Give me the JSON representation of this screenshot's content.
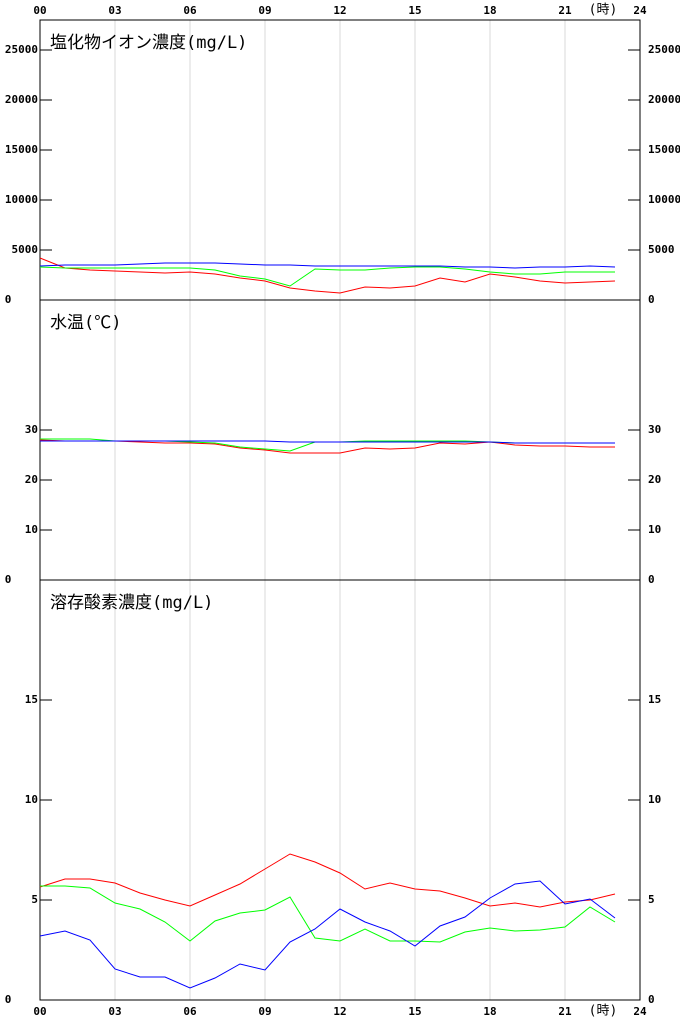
{
  "chart_data": [
    {
      "type": "line",
      "title": "塩化物イオン濃度(mg/L)",
      "xlabel": "(時)",
      "x": [
        0,
        1,
        2,
        3,
        4,
        5,
        6,
        7,
        8,
        9,
        10,
        11,
        12,
        13,
        14,
        15,
        16,
        17,
        18,
        19,
        20,
        21,
        22,
        23
      ],
      "xlim": [
        0,
        24
      ],
      "xticks": [
        {
          "value": 0,
          "label": "00"
        },
        {
          "value": 3,
          "label": "03"
        },
        {
          "value": 6,
          "label": "06"
        },
        {
          "value": 9,
          "label": "09"
        },
        12,
        15,
        18,
        21,
        24
      ],
      "ylim": [
        0,
        28000
      ],
      "yticks": [
        0,
        5000,
        10000,
        15000,
        20000,
        25000
      ],
      "grid": true,
      "series": [
        {
          "color": "#ff0000",
          "values": [
            4200,
            3200,
            3000,
            2900,
            2800,
            2700,
            2800,
            2600,
            2200,
            1900,
            1200,
            900,
            700,
            1300,
            1200,
            1400,
            2200,
            1800,
            2600,
            2300,
            1900,
            1700,
            1800,
            1900
          ]
        },
        {
          "color": "#00ff00",
          "values": [
            3300,
            3200,
            3200,
            3200,
            3200,
            3200,
            3200,
            3000,
            2400,
            2100,
            1400,
            3100,
            3000,
            3000,
            3200,
            3300,
            3300,
            3100,
            2800,
            2600,
            2600,
            2800,
            2800,
            2800
          ]
        },
        {
          "color": "#0000ff",
          "values": [
            3400,
            3500,
            3500,
            3500,
            3600,
            3700,
            3700,
            3700,
            3600,
            3500,
            3500,
            3400,
            3400,
            3400,
            3400,
            3400,
            3400,
            3300,
            3300,
            3200,
            3300,
            3300,
            3400,
            3300
          ]
        }
      ]
    },
    {
      "type": "line",
      "title": "水温(℃)",
      "x": [
        0,
        1,
        2,
        3,
        4,
        5,
        6,
        7,
        8,
        9,
        10,
        11,
        12,
        13,
        14,
        15,
        16,
        17,
        18,
        19,
        20,
        21,
        22,
        23
      ],
      "xlim": [
        0,
        24
      ],
      "xticks": [
        {
          "value": 0,
          "label": "00"
        },
        {
          "value": 3,
          "label": "03"
        },
        {
          "value": 6,
          "label": "06"
        },
        {
          "value": 9,
          "label": "09"
        },
        12,
        15,
        18,
        21,
        24
      ],
      "ylim": [
        0,
        56
      ],
      "yticks": [
        0,
        10,
        20,
        30
      ],
      "grid": true,
      "series": [
        {
          "color": "#ff0000",
          "values": [
            28,
            27.8,
            27.8,
            27.8,
            27.6,
            27.4,
            27.4,
            27.2,
            26.4,
            26,
            25.4,
            25.4,
            25.4,
            26.4,
            26.2,
            26.4,
            27.4,
            27.2,
            27.6,
            27,
            26.8,
            26.8,
            26.6,
            26.6
          ]
        },
        {
          "color": "#00ff00",
          "values": [
            28.2,
            28.2,
            28.2,
            27.8,
            27.8,
            27.8,
            27.6,
            27.4,
            26.6,
            26.2,
            25.8,
            27.6,
            27.6,
            27.8,
            27.8,
            27.8,
            27.8,
            27.8,
            27.6,
            27.4,
            27.4,
            27.4,
            27.4,
            27.4
          ]
        },
        {
          "color": "#0000ff",
          "values": [
            27.8,
            27.8,
            27.8,
            27.8,
            27.8,
            27.8,
            27.8,
            27.8,
            27.8,
            27.8,
            27.6,
            27.6,
            27.6,
            27.6,
            27.6,
            27.6,
            27.6,
            27.6,
            27.6,
            27.4,
            27.4,
            27.4,
            27.4,
            27.4
          ]
        }
      ]
    },
    {
      "type": "line",
      "title": "溶存酸素濃度(mg/L)",
      "xlabel": "(時)",
      "x": [
        0,
        1,
        2,
        3,
        4,
        5,
        6,
        7,
        8,
        9,
        10,
        11,
        12,
        13,
        14,
        15,
        16,
        17,
        18,
        19,
        20,
        21,
        22,
        23
      ],
      "xlim": [
        0,
        24
      ],
      "xticks": [
        {
          "value": 0,
          "label": "00"
        },
        {
          "value": 3,
          "label": "03"
        },
        {
          "value": 6,
          "label": "06"
        },
        {
          "value": 9,
          "label": "09"
        },
        12,
        15,
        18,
        21,
        24
      ],
      "ylim": [
        0,
        21
      ],
      "yticks": [
        0,
        5,
        10,
        15
      ],
      "grid": true,
      "series": [
        {
          "color": "#ff0000",
          "values": [
            5.65,
            6.05,
            6.05,
            5.85,
            5.35,
            5,
            4.7,
            5.25,
            5.8,
            6.55,
            7.3,
            6.9,
            6.35,
            5.55,
            5.85,
            5.55,
            5.45,
            5.1,
            4.7,
            4.85,
            4.65,
            4.9,
            5,
            5.3
          ]
        },
        {
          "color": "#00ff00",
          "values": [
            5.7,
            5.7,
            5.6,
            4.85,
            4.55,
            3.9,
            2.95,
            3.95,
            4.35,
            4.5,
            5.15,
            3.1,
            2.95,
            3.55,
            2.95,
            2.95,
            2.9,
            3.4,
            3.6,
            3.45,
            3.5,
            3.65,
            4.65,
            3.9
          ]
        },
        {
          "color": "#0000ff",
          "values": [
            3.2,
            3.45,
            3,
            1.55,
            1.15,
            1.15,
            0.6,
            1.1,
            1.8,
            1.5,
            2.9,
            3.55,
            4.55,
            3.9,
            3.45,
            2.7,
            3.7,
            4.15,
            5.1,
            5.8,
            5.95,
            4.8,
            5.05,
            4.1
          ]
        }
      ]
    }
  ]
}
